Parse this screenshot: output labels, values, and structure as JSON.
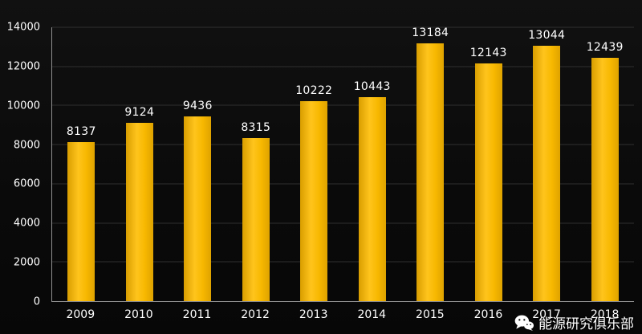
{
  "chart_data": {
    "type": "bar",
    "categories": [
      "2009",
      "2010",
      "2011",
      "2012",
      "2013",
      "2014",
      "2015",
      "2016",
      "2017",
      "2018"
    ],
    "values": [
      8137,
      9124,
      9436,
      8315,
      10222,
      10443,
      13184,
      12143,
      13044,
      12439
    ],
    "title": "",
    "xlabel": "",
    "ylabel": "",
    "ylim": [
      0,
      14000
    ],
    "ytick_step": 2000,
    "grid": true,
    "legend_position": "none",
    "bar_color": "#F5BC00",
    "background_color": "#0B0B0B",
    "text_color": "#FFFFFF",
    "grid_color": "#2F2F2F",
    "axis_color": "#8F8F8F"
  },
  "watermark": {
    "icon": "wechat-icon",
    "text": "能源研究俱乐部"
  }
}
